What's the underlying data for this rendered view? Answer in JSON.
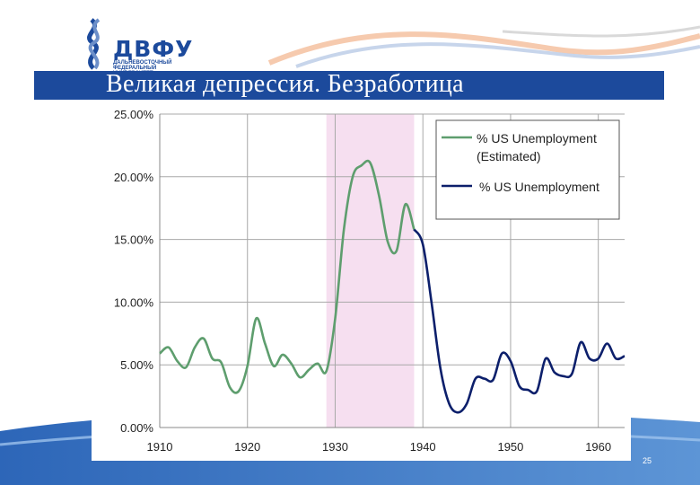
{
  "header": {
    "title": "Великая депрессия. Безработица",
    "logo_name": "ДВФУ",
    "logo_sub": "Дальневосточный федеральный университет",
    "brand_color": "#1c4a9c"
  },
  "footer": {
    "page_number": "25"
  },
  "chart_data": {
    "type": "line",
    "title": "",
    "xlabel": "",
    "ylabel": "",
    "xlim": [
      1910,
      1963
    ],
    "ylim": [
      0,
      25
    ],
    "x_ticks": [
      "1910",
      "1920",
      "1930",
      "1940",
      "1950",
      "1960"
    ],
    "y_ticks": [
      "25.00%",
      "20.00%",
      "15.00%",
      "10.00%",
      "5.00%",
      "0.00%"
    ],
    "grid": true,
    "legend_position": "top-right",
    "highlight_band": {
      "from": 1929,
      "to": 1939,
      "color": "#f6dff0"
    },
    "series": [
      {
        "name": "% US Unemployment (Estimated)",
        "color": "#5e9e6e",
        "x": [
          1910,
          1911,
          1912,
          1913,
          1914,
          1915,
          1916,
          1917,
          1918,
          1919,
          1920,
          1921,
          1922,
          1923,
          1924,
          1925,
          1926,
          1927,
          1928,
          1929,
          1930,
          1931,
          1932,
          1933,
          1934,
          1935,
          1936,
          1937,
          1938,
          1939
        ],
        "y": [
          5.9,
          6.4,
          5.3,
          4.8,
          6.4,
          7.1,
          5.5,
          5.2,
          3.2,
          2.9,
          4.9,
          8.7,
          6.7,
          4.9,
          5.8,
          5.1,
          4.0,
          4.6,
          5.1,
          4.5,
          8.7,
          15.8,
          20.0,
          20.9,
          21.1,
          18.5,
          14.8,
          14.1,
          17.8,
          15.8
        ]
      },
      {
        "name": "% US Unemployment",
        "color": "#0c1f6b",
        "x": [
          1939,
          1940,
          1941,
          1942,
          1943,
          1944,
          1945,
          1946,
          1947,
          1948,
          1949,
          1950,
          1951,
          1952,
          1953,
          1954,
          1955,
          1956,
          1957,
          1958,
          1959,
          1960,
          1961,
          1962,
          1963
        ],
        "y": [
          15.8,
          14.6,
          9.9,
          4.7,
          1.9,
          1.2,
          1.9,
          3.9,
          3.9,
          3.8,
          5.9,
          5.3,
          3.3,
          3.0,
          2.9,
          5.5,
          4.4,
          4.1,
          4.3,
          6.8,
          5.5,
          5.5,
          6.7,
          5.5,
          5.7
        ]
      }
    ]
  }
}
